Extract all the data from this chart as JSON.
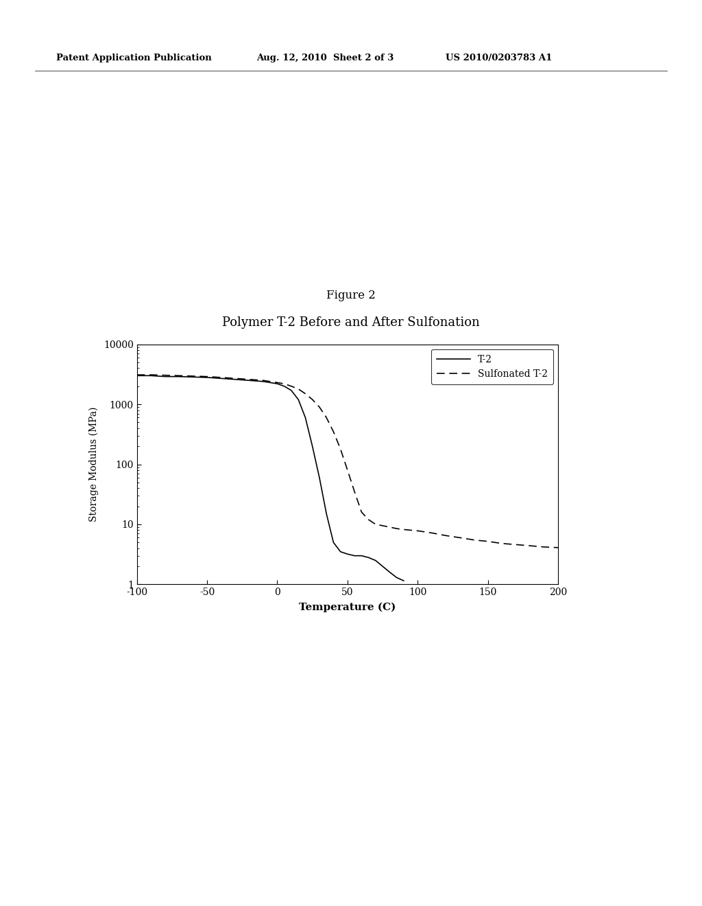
{
  "title_fig": "Figure 2",
  "title_chart": "Polymer T-2 Before and After Sulfonation",
  "xlabel": "Temperature (C)",
  "ylabel": "Storage Modulus (MPa)",
  "header_left": "Patent Application Publication",
  "header_mid": "Aug. 12, 2010  Sheet 2 of 3",
  "header_right": "US 2010/0203783 A1",
  "legend_t2": "T-2",
  "legend_sulf": "Sulfonated T-2",
  "xlim": [
    -100,
    200
  ],
  "ylim_log": [
    1,
    10000
  ],
  "background_color": "#ffffff",
  "line_color": "#000000",
  "t2_x": [
    -100,
    -90,
    -80,
    -70,
    -60,
    -50,
    -40,
    -30,
    -20,
    -10,
    0,
    5,
    10,
    15,
    20,
    25,
    30,
    35,
    40,
    45,
    50,
    55,
    60,
    65,
    70,
    75,
    80,
    85,
    90
  ],
  "t2_y": [
    3000,
    3000,
    2900,
    2900,
    2850,
    2800,
    2700,
    2600,
    2500,
    2400,
    2200,
    2000,
    1700,
    1200,
    600,
    200,
    60,
    15,
    5,
    3.5,
    3.2,
    3.0,
    3.0,
    2.8,
    2.5,
    2.0,
    1.6,
    1.3,
    1.15
  ],
  "sulf_x": [
    -100,
    -90,
    -80,
    -70,
    -60,
    -50,
    -40,
    -30,
    -20,
    -10,
    0,
    5,
    10,
    15,
    20,
    25,
    30,
    35,
    40,
    45,
    50,
    55,
    60,
    65,
    70,
    75,
    80,
    85,
    90,
    95,
    100,
    110,
    120,
    130,
    140,
    150,
    160,
    170,
    180,
    190,
    200
  ],
  "sulf_y": [
    3100,
    3100,
    3050,
    3000,
    2950,
    2900,
    2800,
    2700,
    2600,
    2500,
    2300,
    2200,
    2000,
    1800,
    1500,
    1200,
    900,
    600,
    350,
    180,
    80,
    35,
    16,
    12,
    10,
    9.5,
    9.0,
    8.5,
    8.2,
    8.0,
    7.8,
    7.2,
    6.5,
    6.0,
    5.5,
    5.2,
    4.8,
    4.6,
    4.4,
    4.2,
    4.1
  ]
}
